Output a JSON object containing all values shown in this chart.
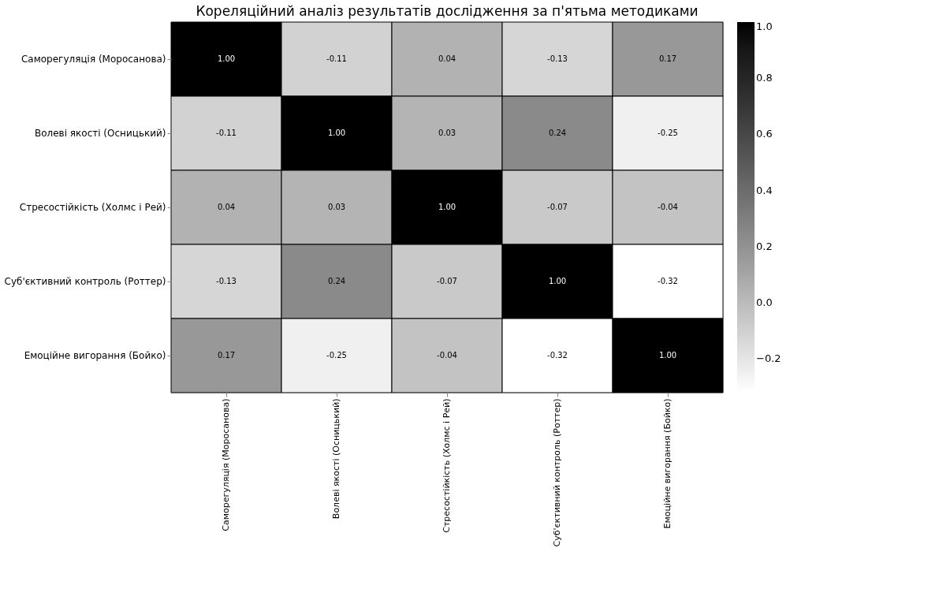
{
  "chart_data": {
    "type": "heatmap",
    "title": "Кореляційний аналіз результатів дослідження за п'ятьма методиками",
    "categories": [
      "Саморегуляція (Моросанова)",
      "Волеві якості (Осницький)",
      "Стресостійкість (Холмс і Рей)",
      "Суб'єктивний контроль (Роттер)",
      "Емоційне вигорання (Бойко)"
    ],
    "y_categories": [
      "Саморегуляція (Моросанова)",
      "Волеві якості (Осницький)",
      "Стресостійкість (Холмс і Рей)",
      "Суб'єктивний контроль (Роттер)",
      "Емоційне вигорання (Бойко)"
    ],
    "cells": [
      [
        1.0,
        -0.11,
        0.04,
        -0.13,
        0.17
      ],
      [
        -0.11,
        1.0,
        0.03,
        0.24,
        -0.25
      ],
      [
        0.04,
        0.03,
        1.0,
        -0.07,
        -0.04
      ],
      [
        -0.13,
        0.24,
        -0.07,
        1.0,
        -0.32
      ],
      [
        0.17,
        -0.25,
        -0.04,
        -0.32,
        1.0
      ]
    ],
    "cell_labels": [
      [
        "1.00",
        "-0.11",
        "0.04",
        "-0.13",
        "0.17"
      ],
      [
        "-0.11",
        "1.00",
        "0.03",
        "0.24",
        "-0.25"
      ],
      [
        "0.04",
        "0.03",
        "1.00",
        "-0.07",
        "-0.04"
      ],
      [
        "-0.13",
        "0.24",
        "-0.07",
        "1.00",
        "-0.32"
      ],
      [
        "0.17",
        "-0.25",
        "-0.04",
        "-0.32",
        "1.00"
      ]
    ],
    "clim": [
      -0.32,
      1.0
    ],
    "cticks": [
      {
        "value": -0.2,
        "label": "−0.2"
      },
      {
        "value": 0,
        "label": "0.0"
      },
      0.2,
      0.4,
      0.6,
      0.8,
      {
        "value": 1,
        "label": "1.0"
      }
    ],
    "grid": false
  }
}
